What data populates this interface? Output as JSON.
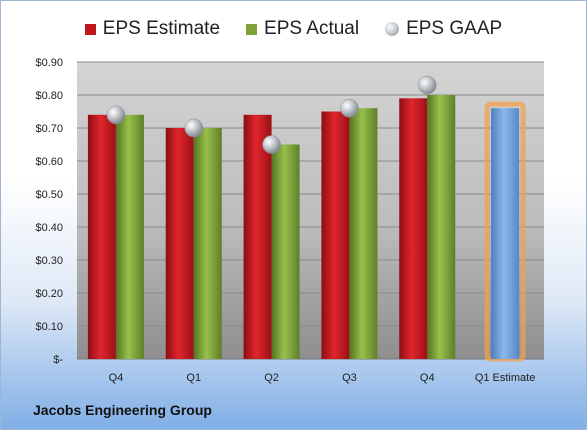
{
  "chart_data": {
    "type": "bar",
    "categories": [
      "Q4",
      "Q1",
      "Q2",
      "Q3",
      "Q4",
      "Q1 Estimate"
    ],
    "series": [
      {
        "name": "EPS Estimate",
        "values": [
          0.74,
          0.7,
          0.74,
          0.75,
          0.79,
          null
        ],
        "color": "#c0171f"
      },
      {
        "name": "EPS Actual",
        "values": [
          0.74,
          0.7,
          0.65,
          0.76,
          0.8,
          null
        ],
        "color": "#7fa33a"
      },
      {
        "name": "EPS GAAP",
        "values": [
          0.74,
          0.7,
          0.65,
          0.76,
          0.83,
          null
        ],
        "color": "#b8bcc3",
        "marker": "sphere"
      }
    ],
    "forecast": {
      "category": "Q1 Estimate",
      "value": 0.76,
      "color": "#6fa0d8",
      "glow_color": "#f0a050"
    },
    "ylim": [
      0,
      0.9
    ],
    "yticks": [
      0,
      0.1,
      0.2,
      0.3,
      0.4,
      0.5,
      0.6,
      0.7,
      0.8,
      0.9
    ],
    "ytick_labels": [
      "$-",
      "$0.10",
      "$0.20",
      "$0.30",
      "$0.40",
      "$0.50",
      "$0.60",
      "$0.70",
      "$0.80",
      "$0.90"
    ],
    "grid": true,
    "legend_position": "top"
  },
  "legend": {
    "estimate": "EPS Estimate",
    "actual": "EPS Actual",
    "gaap": "EPS GAAP"
  },
  "company": "Jacobs Engineering Group"
}
